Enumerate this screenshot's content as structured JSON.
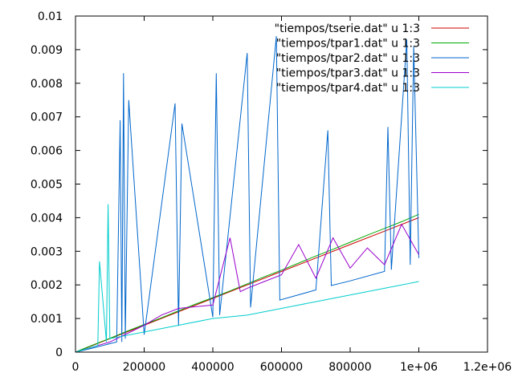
{
  "chart_data": {
    "type": "line",
    "title": "",
    "xlabel": "",
    "ylabel": "",
    "xlim": [
      0,
      1200000
    ],
    "ylim": [
      0,
      0.01
    ],
    "x_ticks": [
      {
        "value": 0,
        "label": "0"
      },
      {
        "value": 200000,
        "label": "200000"
      },
      {
        "value": 400000,
        "label": "400000"
      },
      {
        "value": 600000,
        "label": "600000"
      },
      {
        "value": 800000,
        "label": "800000"
      },
      {
        "value": 1000000,
        "label": "1e+06"
      },
      {
        "value": 1200000,
        "label": "1.2e+06"
      }
    ],
    "y_ticks": [
      {
        "value": 0,
        "label": "0"
      },
      {
        "value": 0.001,
        "label": "0.001"
      },
      {
        "value": 0.002,
        "label": "0.002"
      },
      {
        "value": 0.003,
        "label": "0.003"
      },
      {
        "value": 0.004,
        "label": "0.004"
      },
      {
        "value": 0.005,
        "label": "0.005"
      },
      {
        "value": 0.006,
        "label": "0.006"
      },
      {
        "value": 0.007,
        "label": "0.007"
      },
      {
        "value": 0.008,
        "label": "0.008"
      },
      {
        "value": 0.009,
        "label": "0.009"
      },
      {
        "value": 0.01,
        "label": "0.01"
      }
    ],
    "grid": false,
    "legend_position": "top-right",
    "series": [
      {
        "name": "\"tiempos/tserie.dat\" u 1:3",
        "color": "#cc0000",
        "x": [
          0,
          100000,
          200000,
          300000,
          400000,
          500000,
          600000,
          700000,
          800000,
          900000,
          1000000
        ],
        "y": [
          0.0,
          0.0004,
          0.0008,
          0.0012,
          0.0016,
          0.002,
          0.0024,
          0.0028,
          0.0032,
          0.0036,
          0.004
        ]
      },
      {
        "name": "\"tiempos/tpar1.dat\" u 1:3",
        "color": "#00aa00",
        "x": [
          0,
          25000,
          50000,
          100000,
          150000,
          200000,
          250000,
          300000,
          350000,
          400000,
          450000,
          500000,
          550000,
          600000,
          650000,
          700000,
          750000,
          800000,
          850000,
          900000,
          950000,
          1000000
        ],
        "y": [
          0.0,
          0.00011,
          0.00021,
          0.00041,
          0.00062,
          0.00082,
          0.00102,
          0.00123,
          0.00143,
          0.00162,
          0.00182,
          0.00203,
          0.00224,
          0.00244,
          0.00265,
          0.00286,
          0.00306,
          0.00327,
          0.00348,
          0.00368,
          0.00388,
          0.0041
        ]
      },
      {
        "name": "\"tiempos/tpar2.dat\" u 1:3",
        "color": "#0066cc",
        "x": [
          0,
          50000,
          100000,
          120000,
          130000,
          135000,
          140000,
          145000,
          155000,
          200000,
          290000,
          300000,
          310000,
          400000,
          410000,
          420000,
          500000,
          510000,
          585000,
          595000,
          700000,
          735000,
          745000,
          800000,
          900000,
          910000,
          920000,
          965000,
          975000,
          985000,
          1000000
        ],
        "y": [
          0.0,
          0.00012,
          0.00025,
          0.0003,
          0.0069,
          0.0003,
          0.0083,
          0.0004,
          0.0075,
          0.00052,
          0.0074,
          0.00078,
          0.0068,
          0.00104,
          0.0083,
          0.0011,
          0.0089,
          0.00133,
          0.0094,
          0.00155,
          0.00185,
          0.0066,
          0.00198,
          0.00212,
          0.0024,
          0.0067,
          0.00245,
          0.0093,
          0.0026,
          0.0091,
          0.0028
        ]
      },
      {
        "name": "\"tiempos/tpar3.dat\" u 1:3",
        "color": "#9900cc",
        "x": [
          0,
          100000,
          200000,
          250000,
          300000,
          400000,
          450000,
          480000,
          500000,
          550000,
          600000,
          650000,
          700000,
          750000,
          800000,
          850000,
          900000,
          950000,
          1000000
        ],
        "y": [
          0.0,
          0.0003,
          0.0008,
          0.0011,
          0.0013,
          0.0014,
          0.0034,
          0.0018,
          0.0019,
          0.0021,
          0.0023,
          0.0032,
          0.0022,
          0.0034,
          0.0025,
          0.0031,
          0.0026,
          0.0038,
          0.0029
        ]
      },
      {
        "name": "\"tiempos/tpar4.dat\" u 1:3",
        "color": "#00cccc",
        "x": [
          0,
          65000,
          70000,
          90000,
          95000,
          100000,
          200000,
          300000,
          400000,
          500000,
          600000,
          700000,
          800000,
          900000,
          1000000
        ],
        "y": [
          0.0,
          0.0002,
          0.0027,
          0.0003,
          0.0044,
          0.0004,
          0.0006,
          0.0008,
          0.001,
          0.0011,
          0.0013,
          0.0015,
          0.0017,
          0.0019,
          0.0021
        ]
      }
    ]
  }
}
